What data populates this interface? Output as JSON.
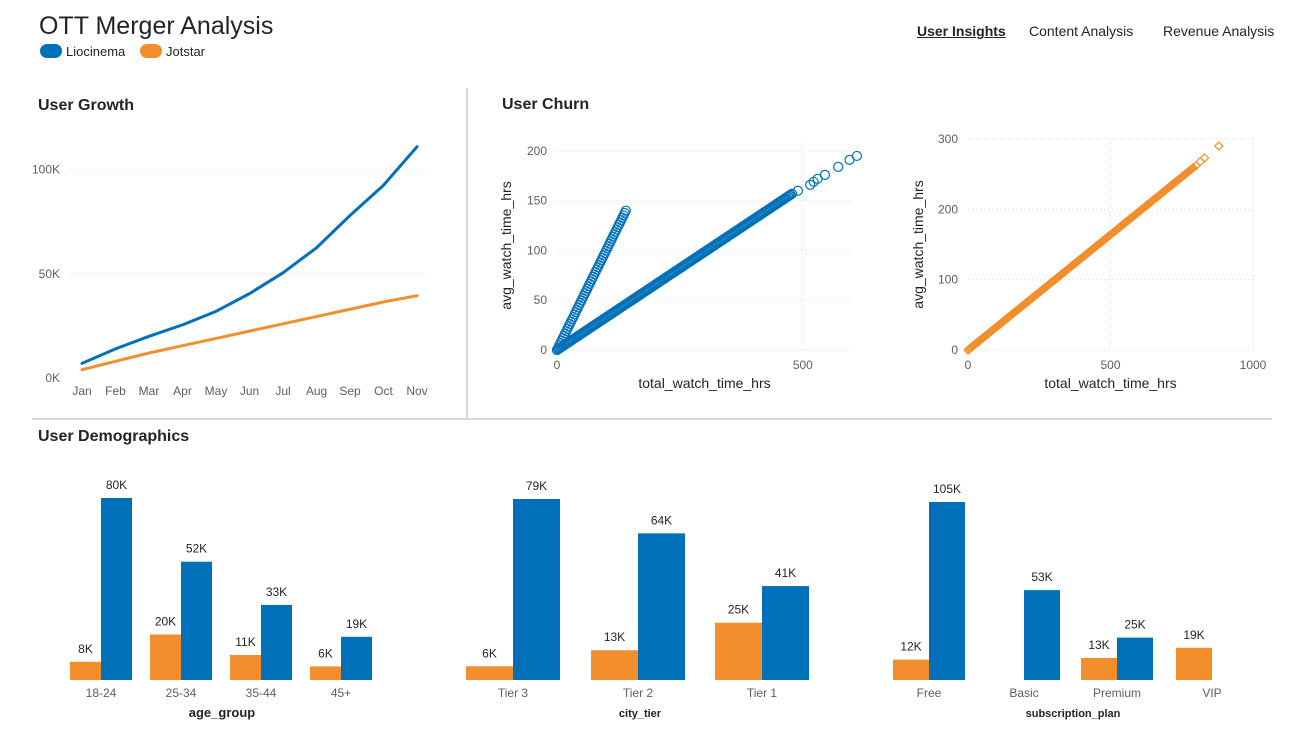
{
  "header": {
    "title": "OTT Merger Analysis",
    "legend": [
      {
        "label": "Liocinema",
        "color": "#0070B8"
      },
      {
        "label": "Jotstar",
        "color": "#F28E2B"
      }
    ],
    "tabs": [
      {
        "label": "User Insights",
        "active": true
      },
      {
        "label": "Content Analysis",
        "active": false
      },
      {
        "label": "Revenue Analysis",
        "active": false
      }
    ]
  },
  "sections": {
    "growth_title": "User Growth",
    "churn_title": "User Churn",
    "demographics_title": "User Demographics"
  },
  "chart_data": [
    {
      "id": "user-growth",
      "type": "line",
      "title": "User Growth",
      "categories": [
        "Jan",
        "Feb",
        "Mar",
        "Apr",
        "May",
        "Jun",
        "Jul",
        "Aug",
        "Sep",
        "Oct",
        "Nov"
      ],
      "series": [
        {
          "name": "Liocinema",
          "color": "#0070B8",
          "values": [
            7000,
            14000,
            20000,
            25500,
            32000,
            40500,
            50500,
            62500,
            78000,
            92500,
            111000
          ]
        },
        {
          "name": "Jotstar",
          "color": "#F28E2B",
          "values": [
            4000,
            8000,
            12000,
            15500,
            19000,
            22500,
            26000,
            29500,
            33000,
            36500,
            39500
          ]
        }
      ],
      "yticks": [
        0,
        50000,
        100000
      ],
      "ytick_labels": [
        "0K",
        "50K",
        "100K"
      ],
      "ylim": [
        0,
        120000
      ],
      "grid": true
    },
    {
      "id": "churn-liocinema",
      "type": "scatter",
      "xlabel": "total_watch_time_hrs",
      "ylabel": "avg_watch_time_hrs",
      "color": "#0070B8",
      "marker": "circle",
      "xlim": [
        0,
        600
      ],
      "ylim": [
        0,
        210
      ],
      "xticks": [
        0,
        500
      ],
      "yticks": [
        0,
        50,
        100,
        150,
        200
      ],
      "grid": true,
      "segments": [
        {
          "x0": 0,
          "y0": 0,
          "x1": 140,
          "y1": 140,
          "n": 60
        },
        {
          "x0": 0,
          "y0": 0,
          "x1": 475,
          "y1": 156,
          "n": 190
        }
      ],
      "points": [
        [
          478,
          157
        ],
        [
          490,
          160
        ],
        [
          515,
          166
        ],
        [
          522,
          169
        ],
        [
          530,
          172
        ],
        [
          545,
          176
        ],
        [
          572,
          184
        ],
        [
          595,
          191
        ],
        [
          610,
          195
        ]
      ]
    },
    {
      "id": "churn-jotstar",
      "type": "scatter",
      "xlabel": "total_watch_time_hrs",
      "ylabel": "avg_watch_time_hrs",
      "color": "#F28E2B",
      "marker": "diamond",
      "xlim": [
        0,
        1000
      ],
      "ylim": [
        0,
        300
      ],
      "xticks": [
        0,
        500,
        1000
      ],
      "yticks": [
        0,
        100,
        200,
        300
      ],
      "grid": true,
      "segments": [
        {
          "x0": 0,
          "y0": 0,
          "x1": 790,
          "y1": 259,
          "n": 220
        }
      ],
      "points": [
        [
          800,
          262
        ],
        [
          815,
          268
        ],
        [
          830,
          273
        ],
        [
          880,
          290
        ]
      ]
    },
    {
      "id": "demo-age",
      "type": "bar",
      "xlabel": "age_group",
      "categories": [
        "18-24",
        "25-34",
        "35-44",
        "45+"
      ],
      "series": [
        {
          "name": "Jotstar",
          "color": "#F28E2B",
          "values": [
            8,
            20,
            11,
            6
          ],
          "labels": [
            "8K",
            "20K",
            "11K",
            "6K"
          ]
        },
        {
          "name": "Liocinema",
          "color": "#0070B8",
          "values": [
            80,
            52,
            33,
            19
          ],
          "labels": [
            "80K",
            "52K",
            "33K",
            "19K"
          ]
        }
      ],
      "ylim": [
        0,
        80
      ]
    },
    {
      "id": "demo-city",
      "type": "bar",
      "xlabel": "city_tier",
      "categories": [
        "Tier 3",
        "Tier 2",
        "Tier 1"
      ],
      "series": [
        {
          "name": "Jotstar",
          "color": "#F28E2B",
          "values": [
            6,
            13,
            25
          ],
          "labels": [
            "6K",
            "13K",
            "25K"
          ]
        },
        {
          "name": "Liocinema",
          "color": "#0070B8",
          "values": [
            79,
            64,
            41
          ],
          "labels": [
            "79K",
            "64K",
            "41K"
          ]
        }
      ],
      "ylim": [
        0,
        79
      ]
    },
    {
      "id": "demo-plan",
      "type": "bar",
      "xlabel": "subscription_plan",
      "categories": [
        "Free",
        "Basic",
        "Premium",
        "VIP"
      ],
      "series": [
        {
          "name": "Jotstar",
          "color": "#F28E2B",
          "values": [
            12,
            null,
            13,
            19
          ],
          "labels": [
            "12K",
            "",
            "13K",
            "19K"
          ]
        },
        {
          "name": "Liocinema",
          "color": "#0070B8",
          "values": [
            105,
            53,
            25,
            null
          ],
          "labels": [
            "105K",
            "53K",
            "25K",
            ""
          ]
        }
      ],
      "ylim": [
        0,
        105
      ]
    }
  ]
}
